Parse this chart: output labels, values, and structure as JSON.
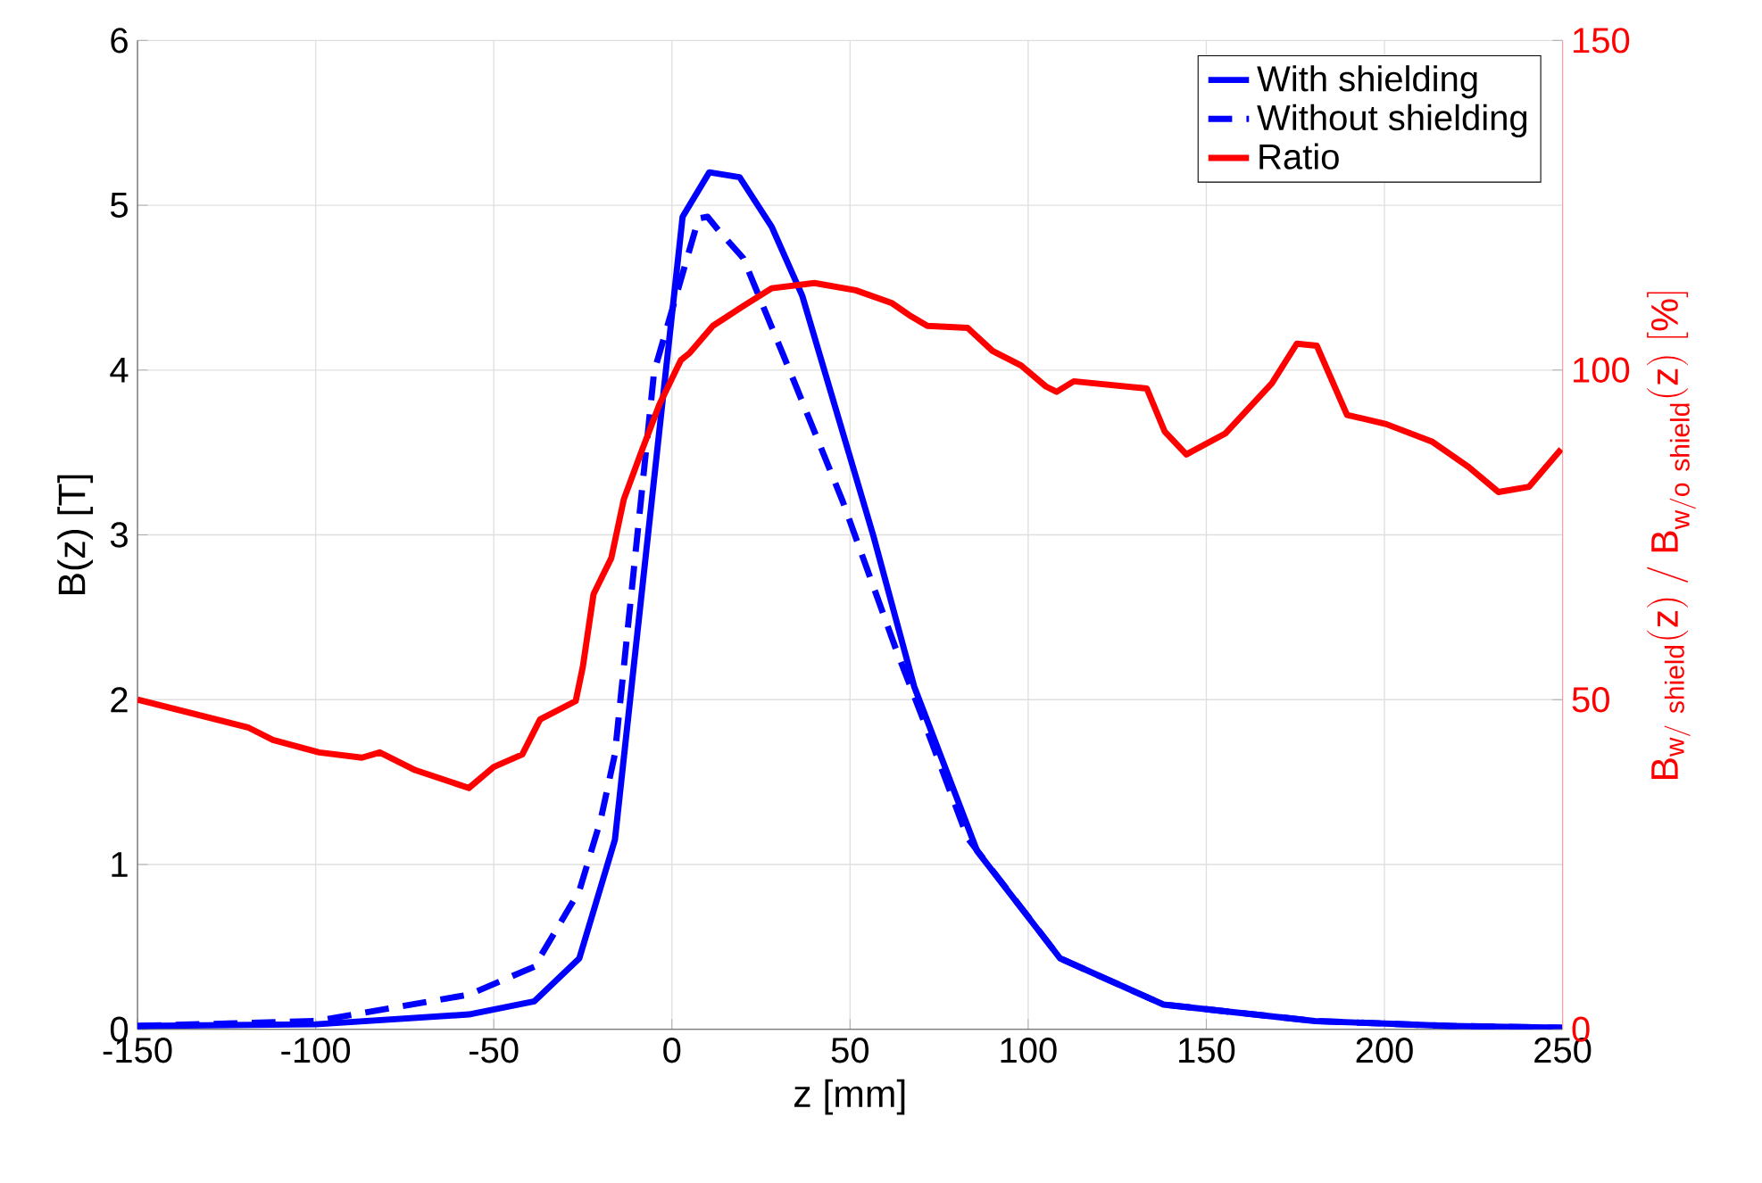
{
  "chart_data": {
    "type": "line",
    "xlabel": "z [mm]",
    "ylabel": "B(z) [T]",
    "y2label": "\\mathrm{B}_{\\mathrm{w/\\ shield}}\\mathrm{(z)\\ /\\ B}_{\\mathrm{w/o\\ shield}}\\mathrm{(z)\\ [\\%]}",
    "xlim": [
      -150,
      250
    ],
    "xticks": [
      -150,
      -100,
      -50,
      0,
      50,
      100,
      150,
      200,
      250
    ],
    "ylim": [
      0,
      6
    ],
    "yticks": [
      0,
      1,
      2,
      3,
      4,
      5,
      6
    ],
    "y2lim": [
      0,
      150
    ],
    "y2ticks": [
      0,
      50,
      100,
      150
    ],
    "grid": true,
    "legend": "top right",
    "series": [
      {
        "name": "With shielding",
        "color": "#0000ff",
        "line_style": "solid",
        "x": [
          -150,
          -100,
          -57,
          -38.6,
          -26,
          -16,
          3,
          10.5,
          19,
          28,
          36.6,
          56.6,
          68,
          85.7,
          109,
          138,
          180.5,
          218.5,
          250
        ],
        "values": [
          0.02,
          0.03,
          0.09,
          0.17,
          0.43,
          1.15,
          4.93,
          5.2,
          5.17,
          4.87,
          4.45,
          2.99,
          2.08,
          1.08,
          0.43,
          0.15,
          0.05,
          0.02,
          0.01
        ]
      },
      {
        "name": "Without shielding",
        "color": "#0000ff",
        "line_style": "dashed",
        "x": [
          -150,
          -100,
          -57,
          -38.6,
          -26,
          -20,
          -16,
          -5,
          7.5,
          10,
          13,
          20,
          33,
          48,
          63,
          70,
          83,
          109,
          138,
          180.5,
          218.5,
          250
        ],
        "values": [
          0.02,
          0.05,
          0.21,
          0.38,
          0.84,
          1.27,
          1.67,
          3.99,
          4.92,
          4.93,
          4.85,
          4.68,
          4.0,
          3.2,
          2.3,
          1.91,
          1.16,
          0.43,
          0.15,
          0.05,
          0.02,
          0.01
        ]
      },
      {
        "name": "Ratio",
        "color": "#ff0000",
        "line_style": "solid",
        "axis": "y2",
        "x": [
          -150,
          -119,
          -112,
          -99,
          -87,
          -82,
          -72,
          -57,
          -50,
          -42,
          -37,
          -27,
          -25,
          -22,
          -17,
          -13.5,
          -8.5,
          -3.5,
          2.5,
          5,
          11.5,
          20,
          28,
          40,
          51.6,
          61.6,
          66.7,
          71.7,
          83,
          90,
          98,
          105,
          108,
          112.8,
          133.3,
          138.3,
          144.4,
          155.4,
          168.4,
          175.4,
          181,
          189.5,
          200.5,
          213.5,
          223.6,
          232,
          240.6,
          249.6
        ],
        "values": [
          50,
          45.8,
          43.9,
          42,
          41.2,
          42,
          39.3,
          36.6,
          39.8,
          41.7,
          47,
          49.8,
          55,
          66,
          71.5,
          80.4,
          87.7,
          94.8,
          101.5,
          102.6,
          106.7,
          109.7,
          112.4,
          113.2,
          112.1,
          110.2,
          108.3,
          106.7,
          106.4,
          102.9,
          100.7,
          97.5,
          96.7,
          98.3,
          97.2,
          90.7,
          87.2,
          90.4,
          98,
          104,
          103.7,
          93.2,
          91.8,
          89.1,
          85.3,
          81.5,
          82.3,
          88
        ]
      }
    ]
  }
}
